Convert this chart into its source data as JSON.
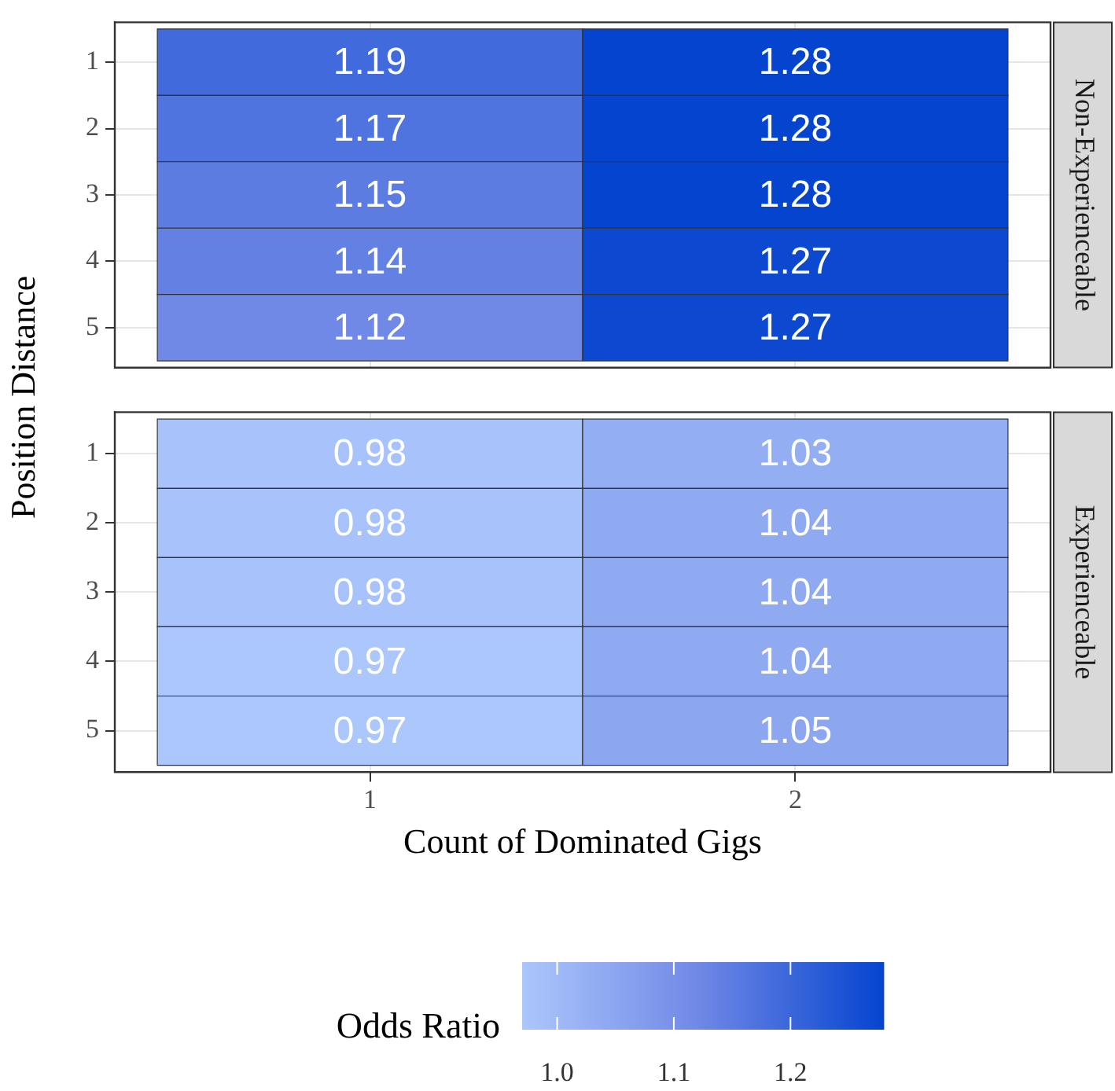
{
  "chart_data": [
    {
      "type": "heatmap",
      "y2label": "Non-Experienceable",
      "ylabel": "Position Distance",
      "categories": [
        "1",
        "2"
      ],
      "y_categories": [
        "1",
        "2",
        "3",
        "4",
        "5"
      ],
      "cells": [
        [
          1.19,
          1.28
        ],
        [
          1.17,
          1.28
        ],
        [
          1.15,
          1.28
        ],
        [
          1.14,
          1.27
        ],
        [
          1.12,
          1.27
        ]
      ],
      "data_labels": true,
      "grid": true,
      "tick_labels": "y"
    },
    {
      "type": "heatmap",
      "y2label": "Experienceable",
      "xlabel": "Count of Dominated Gigs",
      "categories": [
        "1",
        "2"
      ],
      "y_categories": [
        "1",
        "2",
        "3",
        "4",
        "5"
      ],
      "cells": [
        [
          0.98,
          1.03
        ],
        [
          0.98,
          1.04
        ],
        [
          0.98,
          1.04
        ],
        [
          0.97,
          1.04
        ],
        [
          0.97,
          1.05
        ]
      ],
      "data_labels": true,
      "grid": true,
      "clabel": "Odds Ratio",
      "clim": [
        0.97,
        1.28
      ],
      "cticks": [
        {
          "value": 1,
          "label": "1.0"
        },
        {
          "value": 1.1,
          "label": "1.1"
        },
        {
          "value": 1.2,
          "label": "1.2"
        }
      ]
    }
  ]
}
